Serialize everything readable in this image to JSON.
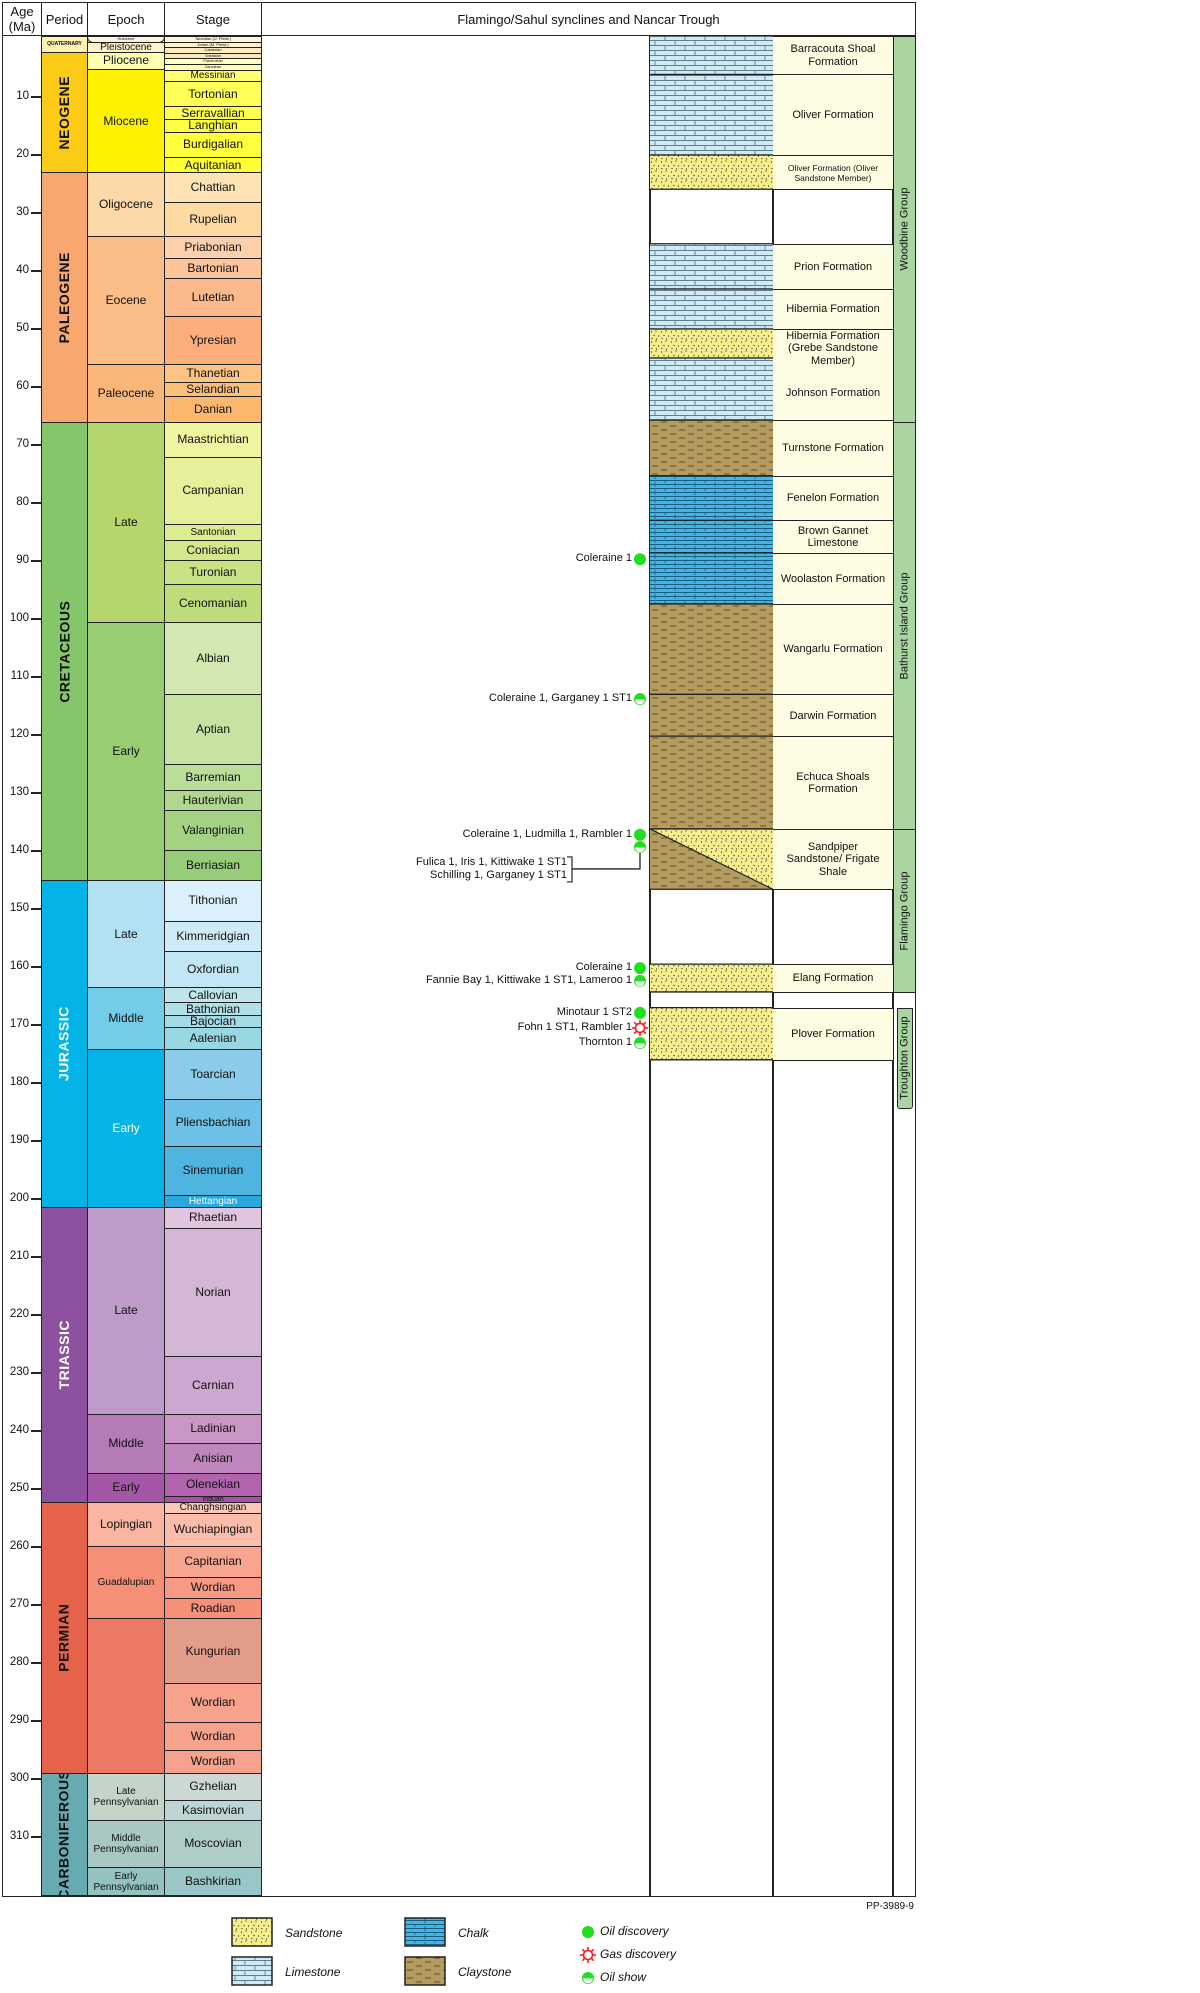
{
  "header": {
    "age_label": "Age (Ma)",
    "period_label": "Period",
    "epoch_label": "Epoch",
    "stage_label": "Stage",
    "section_title": "Flamingo/Sahul synclines and Nancar Trough"
  },
  "age_ticks": [
    10,
    20,
    30,
    40,
    50,
    60,
    70,
    80,
    90,
    100,
    110,
    120,
    130,
    140,
    150,
    160,
    170,
    180,
    190,
    200,
    210,
    220,
    230,
    240,
    250,
    260,
    270,
    280,
    290,
    300,
    310
  ],
  "chart_base_age": 320,
  "periods": [
    {
      "name": "QUATERNARY",
      "top": 0,
      "base": 2.58,
      "color": "#fff1b0",
      "text_color": "#111",
      "small": true
    },
    {
      "name": "NEOGENE",
      "top": 2.58,
      "base": 23,
      "color": "#fccb15",
      "text_color": "#111"
    },
    {
      "name": "PALEOGENE",
      "top": 23,
      "base": 66,
      "color": "#f8a86e",
      "text_color": "#111"
    },
    {
      "name": "CRETACEOUS",
      "top": 66,
      "base": 145,
      "color": "#86c66a",
      "text_color": "#111"
    },
    {
      "name": "JURASSIC",
      "top": 145,
      "base": 201.3,
      "color": "#05b4e6",
      "text_color": "#fff"
    },
    {
      "name": "TRIASSIC",
      "top": 201.3,
      "base": 252.2,
      "color": "#8e519f",
      "text_color": "#fff"
    },
    {
      "name": "PERMIAN",
      "top": 252.2,
      "base": 298.9,
      "color": "#e5634b",
      "text_color": "#111"
    },
    {
      "name": "CARBONIFEROUS",
      "top": 298.9,
      "base": 320,
      "color": "#67aab0",
      "text_color": "#111"
    }
  ],
  "epochs": [
    {
      "name": "Holocene",
      "top": 0,
      "base": 0.0117,
      "color": "#fef2e0",
      "mini": true
    },
    {
      "name": "Pleistocene",
      "top": 0.0117,
      "base": 2.58,
      "color": "#fff2c7",
      "small": true
    },
    {
      "name": "Pliocene",
      "top": 2.58,
      "base": 5.33,
      "color": "#ffffb0"
    },
    {
      "name": "Miocene",
      "top": 5.33,
      "base": 23,
      "color": "#fff200"
    },
    {
      "name": "Oligocene",
      "top": 23,
      "base": 33.9,
      "color": "#fdd8a8"
    },
    {
      "name": "Eocene",
      "top": 33.9,
      "base": 56,
      "color": "#fbbd88"
    },
    {
      "name": "Paleocene",
      "top": 56,
      "base": 66,
      "color": "#fbb67a"
    },
    {
      "name": "Late",
      "top": 66,
      "base": 100.5,
      "color": "#b4d66c"
    },
    {
      "name": "Early",
      "top": 100.5,
      "base": 145,
      "color": "#99cd72"
    },
    {
      "name": "Late",
      "top": 145,
      "base": 163.5,
      "color": "#b3e1f4"
    },
    {
      "name": "Middle",
      "top": 163.5,
      "base": 174.1,
      "color": "#74cde6"
    },
    {
      "name": "Early",
      "top": 174.1,
      "base": 201.3,
      "color": "#05b4e6",
      "text_color": "#fff"
    },
    {
      "name": "Late",
      "top": 201.3,
      "base": 237,
      "color": "#bd9cc9"
    },
    {
      "name": "Middle",
      "top": 237,
      "base": 247.2,
      "color": "#b47bb7"
    },
    {
      "name": "Early",
      "top": 247.2,
      "base": 252.2,
      "color": "#a457a6"
    },
    {
      "name": "Lopingian",
      "top": 252.2,
      "base": 259.8,
      "color": "#f9b5a2"
    },
    {
      "name": "Guadalupian",
      "top": 259.8,
      "base": 272.3,
      "color": "#f58f78",
      "small": true
    },
    {
      "name": "",
      "top": 272.3,
      "base": 298.9,
      "color": "#eb7966"
    },
    {
      "name": "Late Pennsylvanian",
      "top": 298.9,
      "base": 307,
      "color": "#c4d4c8",
      "small": true
    },
    {
      "name": "Middle Pennsylvanian",
      "top": 307,
      "base": 315.2,
      "color": "#a9c8c4",
      "small": true
    },
    {
      "name": "Early Pennsylvanian",
      "top": 315.2,
      "base": 320,
      "color": "#93c2c0",
      "small": true
    }
  ],
  "stages": [
    {
      "name": "Tarantian (U. Pleist.)",
      "top": 0,
      "base": 0.126,
      "color": "#fef3d6",
      "mini": true
    },
    {
      "name": "Ionian (M. Pleist.)",
      "top": 0.126,
      "base": 0.781,
      "color": "#fef0cc",
      "mini": true
    },
    {
      "name": "Calabrian",
      "top": 0.781,
      "base": 1.8,
      "color": "#feedc2",
      "mini": true
    },
    {
      "name": "Gelasian",
      "top": 1.8,
      "base": 2.58,
      "color": "#fee9b8",
      "mini": true
    },
    {
      "name": "Piacenzian",
      "top": 2.58,
      "base": 3.6,
      "color": "#ffffbf",
      "mini": true
    },
    {
      "name": "Zanclean",
      "top": 3.6,
      "base": 5.33,
      "color": "#ffffb3",
      "mini": true
    },
    {
      "name": "Messinian",
      "top": 5.33,
      "base": 7.25,
      "color": "#ffff73",
      "small": true
    },
    {
      "name": "Tortonian",
      "top": 7.25,
      "base": 11.6,
      "color": "#ffff57"
    },
    {
      "name": "Serravallian",
      "top": 11.6,
      "base": 13.8,
      "color": "#ffff4d"
    },
    {
      "name": "Langhian",
      "top": 13.8,
      "base": 16,
      "color": "#ffff45"
    },
    {
      "name": "Burdigalian",
      "top": 16,
      "base": 20.4,
      "color": "#ffff3c"
    },
    {
      "name": "Aquitanian",
      "top": 20.4,
      "base": 23,
      "color": "#ffff33"
    },
    {
      "name": "Chattian",
      "top": 23,
      "base": 28.1,
      "color": "#fee3b4"
    },
    {
      "name": "Rupelian",
      "top": 28.1,
      "base": 33.9,
      "color": "#fed9a2"
    },
    {
      "name": "Priabonian",
      "top": 33.9,
      "base": 37.8,
      "color": "#fdcfaa"
    },
    {
      "name": "Bartonian",
      "top": 37.8,
      "base": 41.2,
      "color": "#fdc399"
    },
    {
      "name": "Lutetian",
      "top": 41.2,
      "base": 47.8,
      "color": "#fcb98b"
    },
    {
      "name": "Ypresian",
      "top": 47.8,
      "base": 56,
      "color": "#fcae7c"
    },
    {
      "name": "Thanetian",
      "top": 56,
      "base": 59.2,
      "color": "#fdc483"
    },
    {
      "name": "Selandian",
      "top": 59.2,
      "base": 61.6,
      "color": "#fdc07a"
    },
    {
      "name": "Danian",
      "top": 61.6,
      "base": 66,
      "color": "#fdb86e"
    },
    {
      "name": "Maastrichtian",
      "top": 66,
      "base": 72.1,
      "color": "#f0f5a0"
    },
    {
      "name": "Campanian",
      "top": 72.1,
      "base": 83.6,
      "color": "#e6f09a"
    },
    {
      "name": "Santonian",
      "top": 83.6,
      "base": 86.3,
      "color": "#dcec90",
      "small": true
    },
    {
      "name": "Coniacian",
      "top": 86.3,
      "base": 89.8,
      "color": "#d3e88a"
    },
    {
      "name": "Turonian",
      "top": 89.8,
      "base": 93.9,
      "color": "#c8e384"
    },
    {
      "name": "Cenomanian",
      "top": 93.9,
      "base": 100.5,
      "color": "#bcdd7a"
    },
    {
      "name": "Albian",
      "top": 100.5,
      "base": 113,
      "color": "#d3e8b0"
    },
    {
      "name": "Aptian",
      "top": 113,
      "base": 125,
      "color": "#c6e3a3"
    },
    {
      "name": "Barremian",
      "top": 125,
      "base": 129.4,
      "color": "#badd98"
    },
    {
      "name": "Hauterivian",
      "top": 129.4,
      "base": 132.9,
      "color": "#afd78d"
    },
    {
      "name": "Valanginian",
      "top": 132.9,
      "base": 139.8,
      "color": "#a3d283"
    },
    {
      "name": "Berriasian",
      "top": 139.8,
      "base": 145,
      "color": "#97cc78"
    },
    {
      "name": "Tithonian",
      "top": 145,
      "base": 152.1,
      "color": "#dbf0fa"
    },
    {
      "name": "Kimmeridgian",
      "top": 152.1,
      "base": 157.3,
      "color": "#cfebf7"
    },
    {
      "name": "Oxfordian",
      "top": 157.3,
      "base": 163.5,
      "color": "#c2e6f4"
    },
    {
      "name": "Callovian",
      "top": 163.5,
      "base": 166.1,
      "color": "#bfe5ea"
    },
    {
      "name": "Bathonian",
      "top": 166.1,
      "base": 168.3,
      "color": "#b1e0e8"
    },
    {
      "name": "Bajocian",
      "top": 168.3,
      "base": 170.3,
      "color": "#a5dbe5"
    },
    {
      "name": "Aalenian",
      "top": 170.3,
      "base": 174.1,
      "color": "#99d7e3"
    },
    {
      "name": "Toarcian",
      "top": 174.1,
      "base": 182.7,
      "color": "#8ccbea"
    },
    {
      "name": "Pliensbachian",
      "top": 182.7,
      "base": 190.8,
      "color": "#6fc0e6"
    },
    {
      "name": "Sinemurian",
      "top": 190.8,
      "base": 199.3,
      "color": "#4fb4e0"
    },
    {
      "name": "Hettangian",
      "top": 199.3,
      "base": 201.3,
      "color": "#2aa8dc",
      "text_color": "#fff",
      "small": true
    },
    {
      "name": "Rhaetian",
      "top": 201.3,
      "base": 205,
      "color": "#e2c3e0"
    },
    {
      "name": "Norian",
      "top": 205,
      "base": 227,
      "color": "#d6b6d6"
    },
    {
      "name": "Carnian",
      "top": 227,
      "base": 237,
      "color": "#cba8cf"
    },
    {
      "name": "Ladinian",
      "top": 237,
      "base": 242,
      "color": "#c996c6"
    },
    {
      "name": "Anisian",
      "top": 242,
      "base": 247.2,
      "color": "#bf86bd"
    },
    {
      "name": "Olenekian",
      "top": 247.2,
      "base": 251.2,
      "color": "#b164ad"
    },
    {
      "name": "Induan",
      "top": 251.2,
      "base": 252.2,
      "color": "#a653a6",
      "small": true
    },
    {
      "name": "Changhsingian",
      "top": 252.2,
      "base": 254.1,
      "color": "#fcc8b9",
      "small": true
    },
    {
      "name": "Wuchiapingian",
      "top": 254.1,
      "base": 259.8,
      "color": "#fbbcaa"
    },
    {
      "name": "Capitanian",
      "top": 259.8,
      "base": 265.1,
      "color": "#f9a58f"
    },
    {
      "name": "Wordian",
      "top": 265.1,
      "base": 268.8,
      "color": "#f89a83"
    },
    {
      "name": "Roadian",
      "top": 268.8,
      "base": 272.3,
      "color": "#f69079"
    },
    {
      "name": "Kungurian",
      "top": 272.3,
      "base": 283.5,
      "color": "#e39c89"
    },
    {
      "name": "Wordian",
      "top": 283.5,
      "base": 290.1,
      "color": "#f7a28c"
    },
    {
      "name": "Wordian",
      "top": 290.1,
      "base": 295,
      "color": "#f7a28c"
    },
    {
      "name": "Wordian",
      "top": 295,
      "base": 298.9,
      "color": "#f7a28c"
    },
    {
      "name": "Gzhelian",
      "top": 298.9,
      "base": 303.7,
      "color": "#ccd8d4"
    },
    {
      "name": "Kasimovian",
      "top": 303.7,
      "base": 307,
      "color": "#bdd5d4"
    },
    {
      "name": "Moscovian",
      "top": 307,
      "base": 315.2,
      "color": "#b0ccc8"
    },
    {
      "name": "Bashkirian",
      "top": 315.2,
      "base": 320,
      "color": "#99c6c6"
    }
  ],
  "formations": [
    {
      "name": "Barracouta Shoal Formation",
      "top": 0,
      "base": 6.2,
      "lithology": "limestone"
    },
    {
      "name": "Oliver Formation",
      "top": 6.2,
      "base": 20,
      "lithology": "limestone"
    },
    {
      "name": "Oliver Formation (Oliver Sandstone Member)",
      "top": 20,
      "base": 25.9,
      "lithology": "sandstone",
      "small": true
    },
    {
      "name": "Prion Formation",
      "top": 35.3,
      "base": 43.1,
      "lithology": "limestone"
    },
    {
      "name": "Hibernia Formation",
      "top": 43.1,
      "base": 50,
      "lithology": "limestone"
    },
    {
      "name": "Hibernia Formation (Grebe Sandstone Member)",
      "top": 50,
      "base": 55,
      "lithology": "sandstone",
      "label_base": 56.5
    },
    {
      "name": "Johnson Formation",
      "top": 55,
      "base": 65.7,
      "lithology": "limestone",
      "label_top": 56.5
    },
    {
      "name": "Turnstone Formation",
      "top": 65.7,
      "base": 75.3,
      "lithology": "claystone"
    },
    {
      "name": "Fenelon Formation",
      "top": 75.3,
      "base": 83,
      "lithology": "chalk"
    },
    {
      "name": "Brown Gannet Limestone",
      "top": 83,
      "base": 88.6,
      "lithology": "chalk"
    },
    {
      "name": "Woolaston Formation",
      "top": 88.6,
      "base": 97.4,
      "lithology": "chalk"
    },
    {
      "name": "Wangarlu Formation",
      "top": 97.4,
      "base": 113,
      "lithology": "claystone"
    },
    {
      "name": "Darwin Formation",
      "top": 113,
      "base": 120.2,
      "lithology": "claystone"
    },
    {
      "name": "Echuca Shoals Formation",
      "top": 120.2,
      "base": 136.2,
      "lithology": "claystone"
    },
    {
      "name": "Sandpiper Sandstone/ Frigate Shale",
      "top": 136.2,
      "base": 146.6,
      "lithology": "sandstone-claystone"
    },
    {
      "name": "Elang Formation",
      "top": 159.5,
      "base": 164.3,
      "lithology": "sandstone"
    },
    {
      "name": "Plover Formation",
      "top": 167,
      "base": 176,
      "lithology": "sandstone"
    }
  ],
  "groups": [
    {
      "name": "Woodbine Group",
      "top": 0,
      "base": 66
    },
    {
      "name": "Bathurst Island Group",
      "top": 66,
      "base": 136.2
    },
    {
      "name": "Flamingo Group",
      "top": 136.2,
      "base": 164.3
    },
    {
      "name": "Troughton Group",
      "top": 167,
      "base": 184.3,
      "narrow_below": 176
    }
  ],
  "shows": [
    {
      "label": "Coleraine 1",
      "age": 89.7,
      "type": "oil-discovery"
    },
    {
      "label": "Coleraine 1, Garganey 1 ST1",
      "age": 113.8,
      "type": "oil-show"
    },
    {
      "label": "Coleraine 1, Ludmilla 1, Rambler 1",
      "age": 137.2,
      "type": "oil-discovery"
    },
    {
      "label": "",
      "age": 139.3,
      "type": "oil-show",
      "bracket_lines": [
        "Fulica 1, Iris 1, Kittiwake 1 ST1",
        "Schilling 1, Garganey 1 ST1"
      ]
    },
    {
      "label": "Coleraine 1",
      "age": 160.2,
      "type": "oil-discovery"
    },
    {
      "label": "Fannie Bay 1, Kittiwake 1 ST1, Lameroo 1",
      "age": 162.4,
      "type": "oil-show"
    },
    {
      "label": "Minotaur 1 ST2",
      "age": 167.9,
      "type": "oil-discovery"
    },
    {
      "label": "Fohn 1 ST1, Rambler 1",
      "age": 170.5,
      "type": "gas-discovery"
    },
    {
      "label": "Thornton 1",
      "age": 173.1,
      "type": "oil-show"
    }
  ],
  "figure_code": "PP-3989-9",
  "legend": {
    "sandstone": "Sandstone",
    "limestone": "Limestone",
    "chalk": "Chalk",
    "claystone": "Claystone",
    "oil_discovery": "Oil discovery",
    "gas_discovery": "Gas discovery",
    "oil_show": "Oil show"
  },
  "colors": {
    "oil": "#1ee01e",
    "gas": "#ff1a1a",
    "formation_bg": "#fdfde4",
    "group_bg": "#a9d6a0",
    "sandstone": "#f6ee8c",
    "limestone": "#cfe9f5",
    "chalk": "#3fb6ea",
    "claystone": "#b49b5f"
  }
}
